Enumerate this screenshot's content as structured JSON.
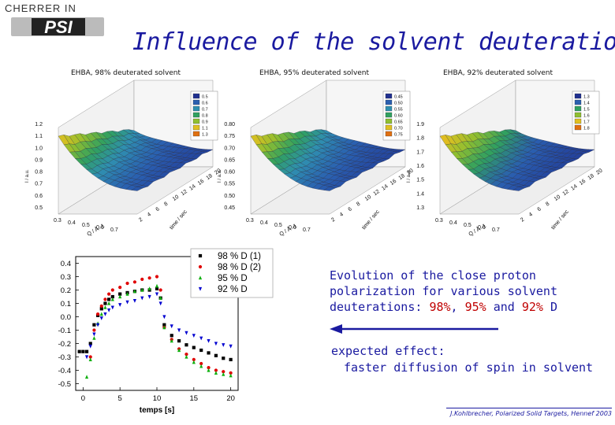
{
  "logo": {
    "text_top": "CHERRER IN",
    "text_main": "PSI"
  },
  "title": "Influence of the solvent deuteration",
  "surface_plots": [
    {
      "title": "EHBA, 98% deuterated solvent",
      "z_ticks": [
        "1.2",
        "1.1",
        "1.0",
        "0.9",
        "0.8",
        "0.7",
        "0.6",
        "0.5"
      ],
      "q_ticks": [
        "0.3",
        "0.4",
        "0.5",
        "0.6",
        "0.7"
      ],
      "t_ticks": [
        "2",
        "4",
        "6",
        "8",
        "10",
        "12",
        "14",
        "16",
        "18",
        "20"
      ],
      "legend": [
        "0.5",
        "0.6",
        "0.7",
        "0.8",
        "0.9",
        "1.1",
        "1.3"
      ],
      "legend_colors": [
        "#1f2f8f",
        "#2a5fb0",
        "#2f8fb0",
        "#30a060",
        "#8fbf30",
        "#e0c020",
        "#e07010"
      ],
      "q_label": "Q / Å -1",
      "t_label": "time / sec",
      "z_label": "I / a.u."
    },
    {
      "title": "EHBA, 95% deuterated solvent",
      "z_ticks": [
        "0.80",
        "0.75",
        "0.70",
        "0.65",
        "0.60",
        "0.55",
        "0.50",
        "0.45"
      ],
      "q_ticks": [
        "0.3",
        "0.4",
        "0.5",
        "0.6",
        "0.7"
      ],
      "t_ticks": [
        "2",
        "4",
        "6",
        "8",
        "10",
        "12",
        "14",
        "16",
        "18",
        "20"
      ],
      "legend": [
        "0.45",
        "0.50",
        "0.55",
        "0.60",
        "0.65",
        "0.70",
        "0.75"
      ],
      "legend_colors": [
        "#1f2f8f",
        "#2a5fb0",
        "#2f8fb0",
        "#30a060",
        "#8fbf30",
        "#e0c020",
        "#e07010"
      ],
      "q_label": "Q / Å -1",
      "t_label": "time / sec",
      "z_label": "I / a.u."
    },
    {
      "title": "EHBA, 92% deuterated solvent",
      "z_ticks": [
        "1.9",
        "1.8",
        "1.7",
        "1.6",
        "1.5",
        "1.4",
        "1.3"
      ],
      "q_ticks": [
        "0.3",
        "0.4",
        "0.5",
        "0.6",
        "0.7"
      ],
      "t_ticks": [
        "2",
        "4",
        "6",
        "8",
        "10",
        "12",
        "14",
        "16",
        "18",
        "20"
      ],
      "legend": [
        "1.3",
        "1.4",
        "1.5",
        "1.6",
        "1.7",
        "1.8"
      ],
      "legend_colors": [
        "#1f2f8f",
        "#2a5fb0",
        "#30a060",
        "#8fbf30",
        "#e0c020",
        "#e07010"
      ],
      "q_label": "Q / Å -1",
      "t_label": "time / sec",
      "z_label": "I / a.u."
    }
  ],
  "chart_data": {
    "type": "scatter",
    "xlabel": "temps [s]",
    "ylabel": "",
    "xlim": [
      -1,
      21
    ],
    "ylim": [
      -0.55,
      0.45
    ],
    "x_ticks": [
      0,
      5,
      10,
      15,
      20
    ],
    "y_ticks": [
      0.4,
      0.3,
      0.2,
      0.1,
      0.0,
      -0.1,
      -0.2,
      -0.3,
      -0.4,
      -0.5
    ],
    "y_tick_labels": [
      "0.4",
      "0.3",
      "0.2",
      "0.1",
      "0.0",
      "-0.1",
      "-0.2",
      "-0.3",
      "-0.4",
      "-0.5"
    ],
    "legend_position": "top-right",
    "series": [
      {
        "name": "98 % D (1)",
        "marker": "square",
        "color": "#000000",
        "x": [
          -0.5,
          0,
          0.5,
          1,
          1.5,
          2,
          2.5,
          3,
          3.5,
          4,
          5,
          6,
          7,
          8,
          9,
          10,
          10.5,
          11,
          12,
          13,
          14,
          15,
          16,
          17,
          18,
          19,
          20
        ],
        "y": [
          -0.26,
          -0.26,
          -0.26,
          -0.2,
          -0.06,
          0.01,
          0.06,
          0.1,
          0.13,
          0.15,
          0.17,
          0.18,
          0.19,
          0.2,
          0.2,
          0.21,
          0.14,
          -0.06,
          -0.14,
          -0.18,
          -0.21,
          -0.23,
          -0.25,
          -0.27,
          -0.29,
          -0.31,
          -0.32
        ]
      },
      {
        "name": "98 % D (2)",
        "marker": "circle",
        "color": "#e00000",
        "x": [
          1,
          1.5,
          2,
          2.5,
          3,
          3.5,
          4,
          5,
          6,
          7,
          8,
          9,
          10,
          10.5,
          11,
          12,
          13,
          14,
          15,
          16,
          17,
          18,
          19,
          20
        ],
        "y": [
          -0.3,
          -0.1,
          0.02,
          0.08,
          0.13,
          0.17,
          0.2,
          0.22,
          0.25,
          0.26,
          0.28,
          0.29,
          0.3,
          0.2,
          -0.08,
          -0.17,
          -0.24,
          -0.28,
          -0.32,
          -0.35,
          -0.38,
          -0.4,
          -0.41,
          -0.42
        ]
      },
      {
        "name": "95 % D",
        "marker": "triangle-up",
        "color": "#10b010",
        "x": [
          0.5,
          1,
          1.5,
          2,
          2.5,
          3,
          3.5,
          4,
          5,
          6,
          7,
          8,
          9,
          10,
          10.5,
          11,
          12,
          13,
          14,
          15,
          16,
          17,
          18,
          19,
          20
        ],
        "y": [
          -0.45,
          -0.32,
          -0.16,
          -0.05,
          0.02,
          0.07,
          0.1,
          0.13,
          0.15,
          0.17,
          0.19,
          0.2,
          0.21,
          0.23,
          0.14,
          -0.08,
          -0.18,
          -0.25,
          -0.3,
          -0.34,
          -0.37,
          -0.4,
          -0.42,
          -0.43,
          -0.44
        ]
      },
      {
        "name": "92 % D",
        "marker": "triangle-down",
        "color": "#0000d0",
        "x": [
          0.5,
          1,
          1.5,
          2,
          2.5,
          3,
          3.5,
          4,
          5,
          6,
          7,
          8,
          9,
          10,
          10.5,
          11,
          12,
          13,
          14,
          15,
          16,
          17,
          18,
          19,
          20
        ],
        "y": [
          -0.3,
          -0.22,
          -0.13,
          -0.06,
          -0.01,
          0.02,
          0.05,
          0.07,
          0.09,
          0.11,
          0.12,
          0.14,
          0.15,
          0.17,
          0.1,
          0.0,
          -0.07,
          -0.1,
          -0.12,
          -0.14,
          -0.16,
          -0.18,
          -0.2,
          -0.21,
          -0.22
        ]
      }
    ]
  },
  "description": {
    "line1": "Evolution of the close proton",
    "line2": "polarization for various solvent",
    "line3_pre": "deuterations: ",
    "pct1": "98%",
    "sep1": ", ",
    "pct2": "95%",
    "sep2": " and ",
    "pct3": "92%",
    "line3_post": " D"
  },
  "effect": {
    "line1": "expected effect:",
    "line2": "faster diffusion of spin in solvent"
  },
  "footer": "J.Kohlbrecher, Polarized Solid Targets, Hennef 2003",
  "colors": {
    "title": "#1a1aa0",
    "accent_red": "#c00000",
    "text_blue": "#1a1aa0"
  }
}
